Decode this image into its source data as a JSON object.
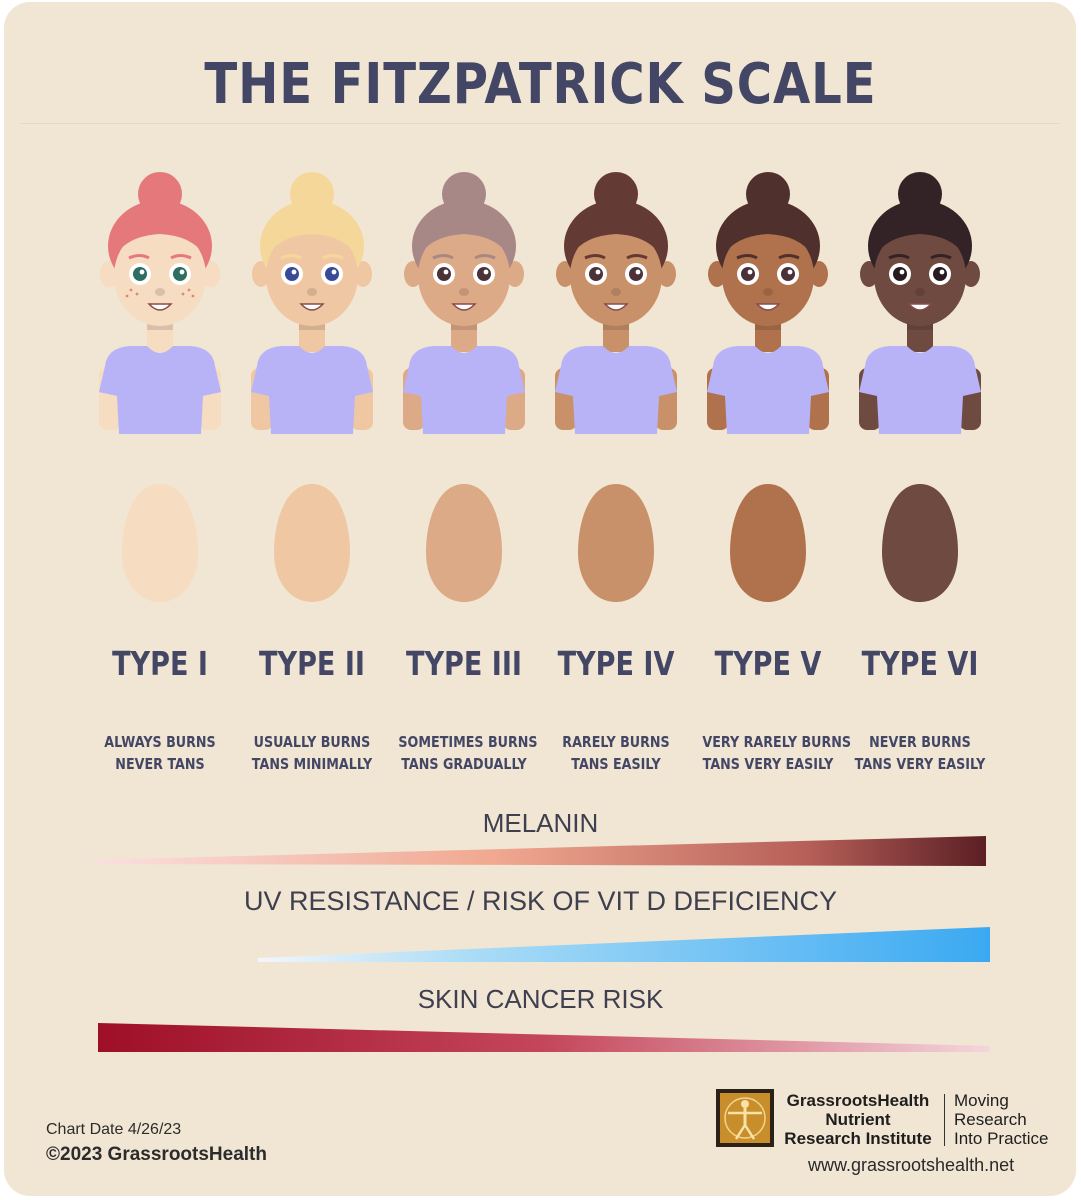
{
  "title": "THE FITZPATRICK SCALE",
  "skin_types": [
    {
      "label": "TYPE I",
      "line1": "ALWAYS BURNS",
      "line2": "NEVER TANS",
      "skin": "#f6dcc0",
      "hair": "#e5787a",
      "eye": "#2f6f5f",
      "freckles": "yes"
    },
    {
      "label": "TYPE II",
      "line1": "USUALLY BURNS",
      "line2": "TANS MINIMALLY",
      "skin": "#efc8a3",
      "hair": "#f6d79a",
      "eye": "#3a4a9a",
      "freckles": "no"
    },
    {
      "label": "TYPE III",
      "line1": "SOMETIMES BURNS",
      "line2": "TANS GRADUALLY",
      "skin": "#dcaa86",
      "hair": "#a88886",
      "eye": "#4a3238",
      "freckles": "no"
    },
    {
      "label": "TYPE IV",
      "line1": "RARELY BURNS",
      "line2": "TANS EASILY",
      "skin": "#c9916a",
      "hair": "#643a34",
      "eye": "#4a3238",
      "freckles": "no"
    },
    {
      "label": "TYPE V",
      "line1": "VERY RARELY BURNS",
      "line2": "TANS VERY EASILY",
      "skin": "#b0724c",
      "hair": "#50302c",
      "eye": "#4a3238",
      "freckles": "no"
    },
    {
      "label": "TYPE VI",
      "line1": "NEVER BURNS",
      "line2": "TANS VERY EASILY",
      "skin": "#6f4a40",
      "hair": "#332226",
      "eye": "#2a1a1e",
      "freckles": "no"
    }
  ],
  "shirt_color": "#b8b3f7",
  "scales": {
    "melanin": "MELANIN",
    "uv": "UV RESISTANCE / RISK OF VIT D DEFICIENCY",
    "cancer": "SKIN CANCER RISK"
  },
  "footer": {
    "chart_date": "Chart Date 4/26/23",
    "copyright": "©2023 GrassrootsHealth",
    "org_line1": "GrassrootsHealth",
    "org_line2": "Nutrient",
    "org_line3": "Research Institute",
    "tag_line1": "Moving",
    "tag_line2": "Research",
    "tag_line3": "Into Practice",
    "url": "www.grassrootshealth.net"
  }
}
